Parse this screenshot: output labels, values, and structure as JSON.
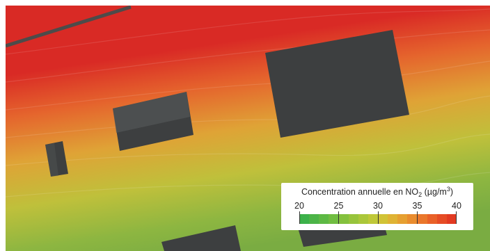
{
  "legend": {
    "title_prefix": "Concentration annuelle en NO",
    "title_sub": "2",
    "title_unit": " (µg/m",
    "title_sup": "3",
    "title_close": ")",
    "ticks": [
      "20",
      "25",
      "30",
      "35",
      "40"
    ],
    "colors": [
      "#3cb14a",
      "#4cb447",
      "#5db944",
      "#70bd41",
      "#84c13e",
      "#97c43c",
      "#abc73a",
      "#bfc838",
      "#d1c336",
      "#dfb334",
      "#e6a031",
      "#e98c2e",
      "#ea772b",
      "#e96128",
      "#e64c25",
      "#e23a22"
    ]
  },
  "map": {
    "colors": {
      "high": "#d92a25",
      "mid_high": "#e5652d",
      "mid": "#dfa336",
      "mid_low": "#bfc03b",
      "low": "#8db641",
      "lowest": "#7aac42",
      "building": "#3d3f40",
      "building_light": "#5a5c5d",
      "road": "#4d4b4a"
    }
  }
}
